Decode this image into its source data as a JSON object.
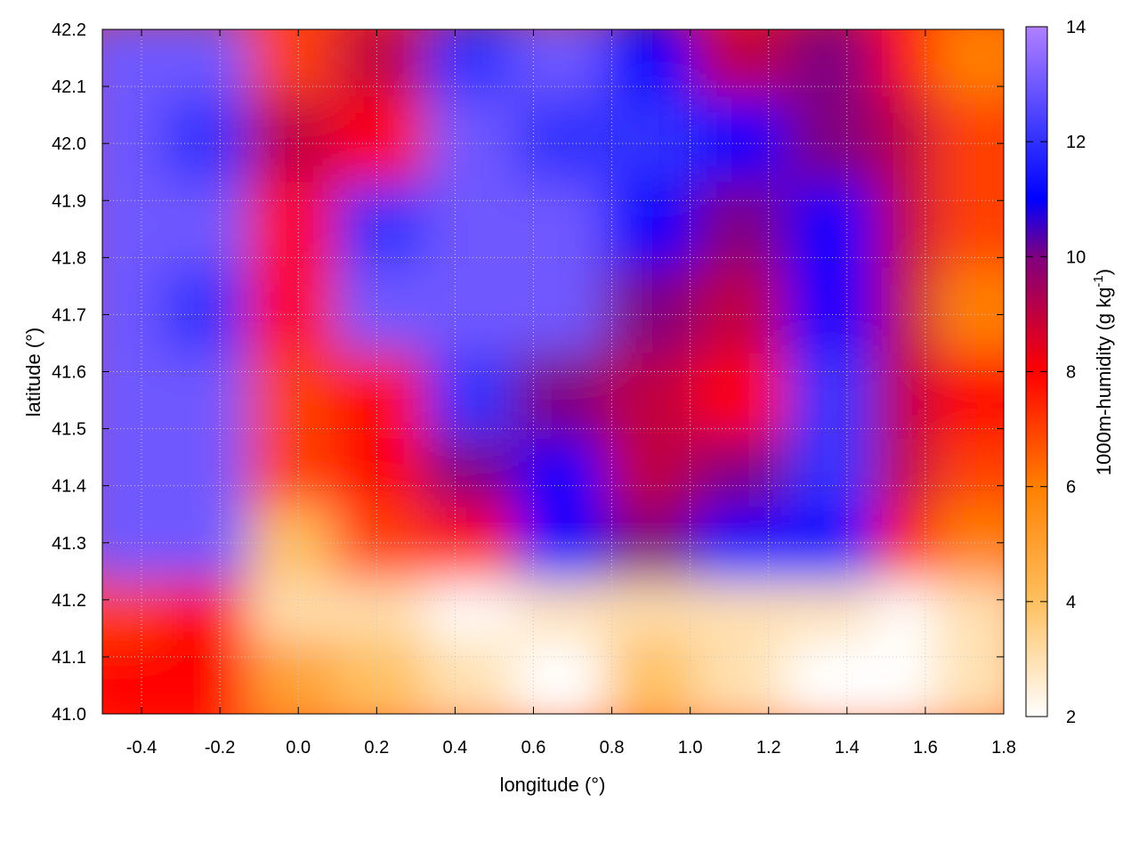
{
  "chart_data": {
    "type": "heatmap",
    "title": "",
    "xlabel": "longitude (°)",
    "ylabel": "latitude (°)",
    "colorbar_label_main": "1000m-humidity (g kg",
    "colorbar_label_sup": "-1",
    "colorbar_label_end": ")",
    "xlim": [
      -0.5,
      1.8
    ],
    "ylim": [
      41.0,
      42.2
    ],
    "clim": [
      2,
      14
    ],
    "grid": true,
    "x_ticks": [
      "-0.4",
      "-0.2",
      "0.0",
      "0.2",
      "0.4",
      "0.6",
      "0.8",
      "1.0",
      "1.2",
      "1.4",
      "1.6",
      "1.8"
    ],
    "y_ticks": [
      "41.0",
      "41.1",
      "41.2",
      "41.3",
      "41.4",
      "41.5",
      "41.6",
      "41.7",
      "41.8",
      "41.9",
      "42.0",
      "42.1",
      "42.2"
    ],
    "colorbar_ticks": [
      "2",
      "4",
      "6",
      "8",
      "10",
      "12",
      "14"
    ],
    "colormap": [
      {
        "v": 2,
        "color": "#ffffff"
      },
      {
        "v": 4,
        "color": "#ffc060"
      },
      {
        "v": 6,
        "color": "#ff8000"
      },
      {
        "v": 8,
        "color": "#ff0000"
      },
      {
        "v": 10,
        "color": "#800080"
      },
      {
        "v": 11,
        "color": "#0000ff"
      },
      {
        "v": 12,
        "color": "#3030ff"
      },
      {
        "v": 14,
        "color": "#b080ff"
      }
    ],
    "grid_lon": [
      -0.45,
      -0.22,
      0.0,
      0.22,
      0.45,
      0.68,
      0.91,
      1.14,
      1.37,
      1.6,
      1.75
    ],
    "grid_lat": [
      42.15,
      42.0,
      41.85,
      41.7,
      41.55,
      41.4,
      41.28,
      41.15,
      41.05
    ],
    "values": [
      [
        13,
        13,
        7,
        9,
        12,
        13,
        11,
        9,
        10,
        8,
        6
      ],
      [
        13,
        12,
        9,
        8,
        13,
        12,
        12,
        11,
        10,
        9,
        7
      ],
      [
        13,
        13,
        8,
        12,
        13,
        13,
        11,
        10,
        11,
        9,
        7
      ],
      [
        13,
        12,
        8,
        13,
        13,
        13,
        10,
        9,
        11,
        9,
        6
      ],
      [
        13,
        13,
        7,
        8,
        12,
        10,
        9,
        8,
        12,
        9,
        8
      ],
      [
        13,
        13,
        7,
        8,
        10,
        11,
        9,
        10,
        12,
        9,
        7
      ],
      [
        13,
        13,
        4,
        7,
        8,
        11,
        10,
        11,
        11,
        8,
        6
      ],
      [
        7,
        8,
        3,
        3,
        2,
        3,
        3,
        3,
        3,
        2,
        3
      ],
      [
        8,
        8,
        5,
        4,
        3,
        2,
        4,
        3,
        2,
        2,
        3
      ]
    ]
  }
}
